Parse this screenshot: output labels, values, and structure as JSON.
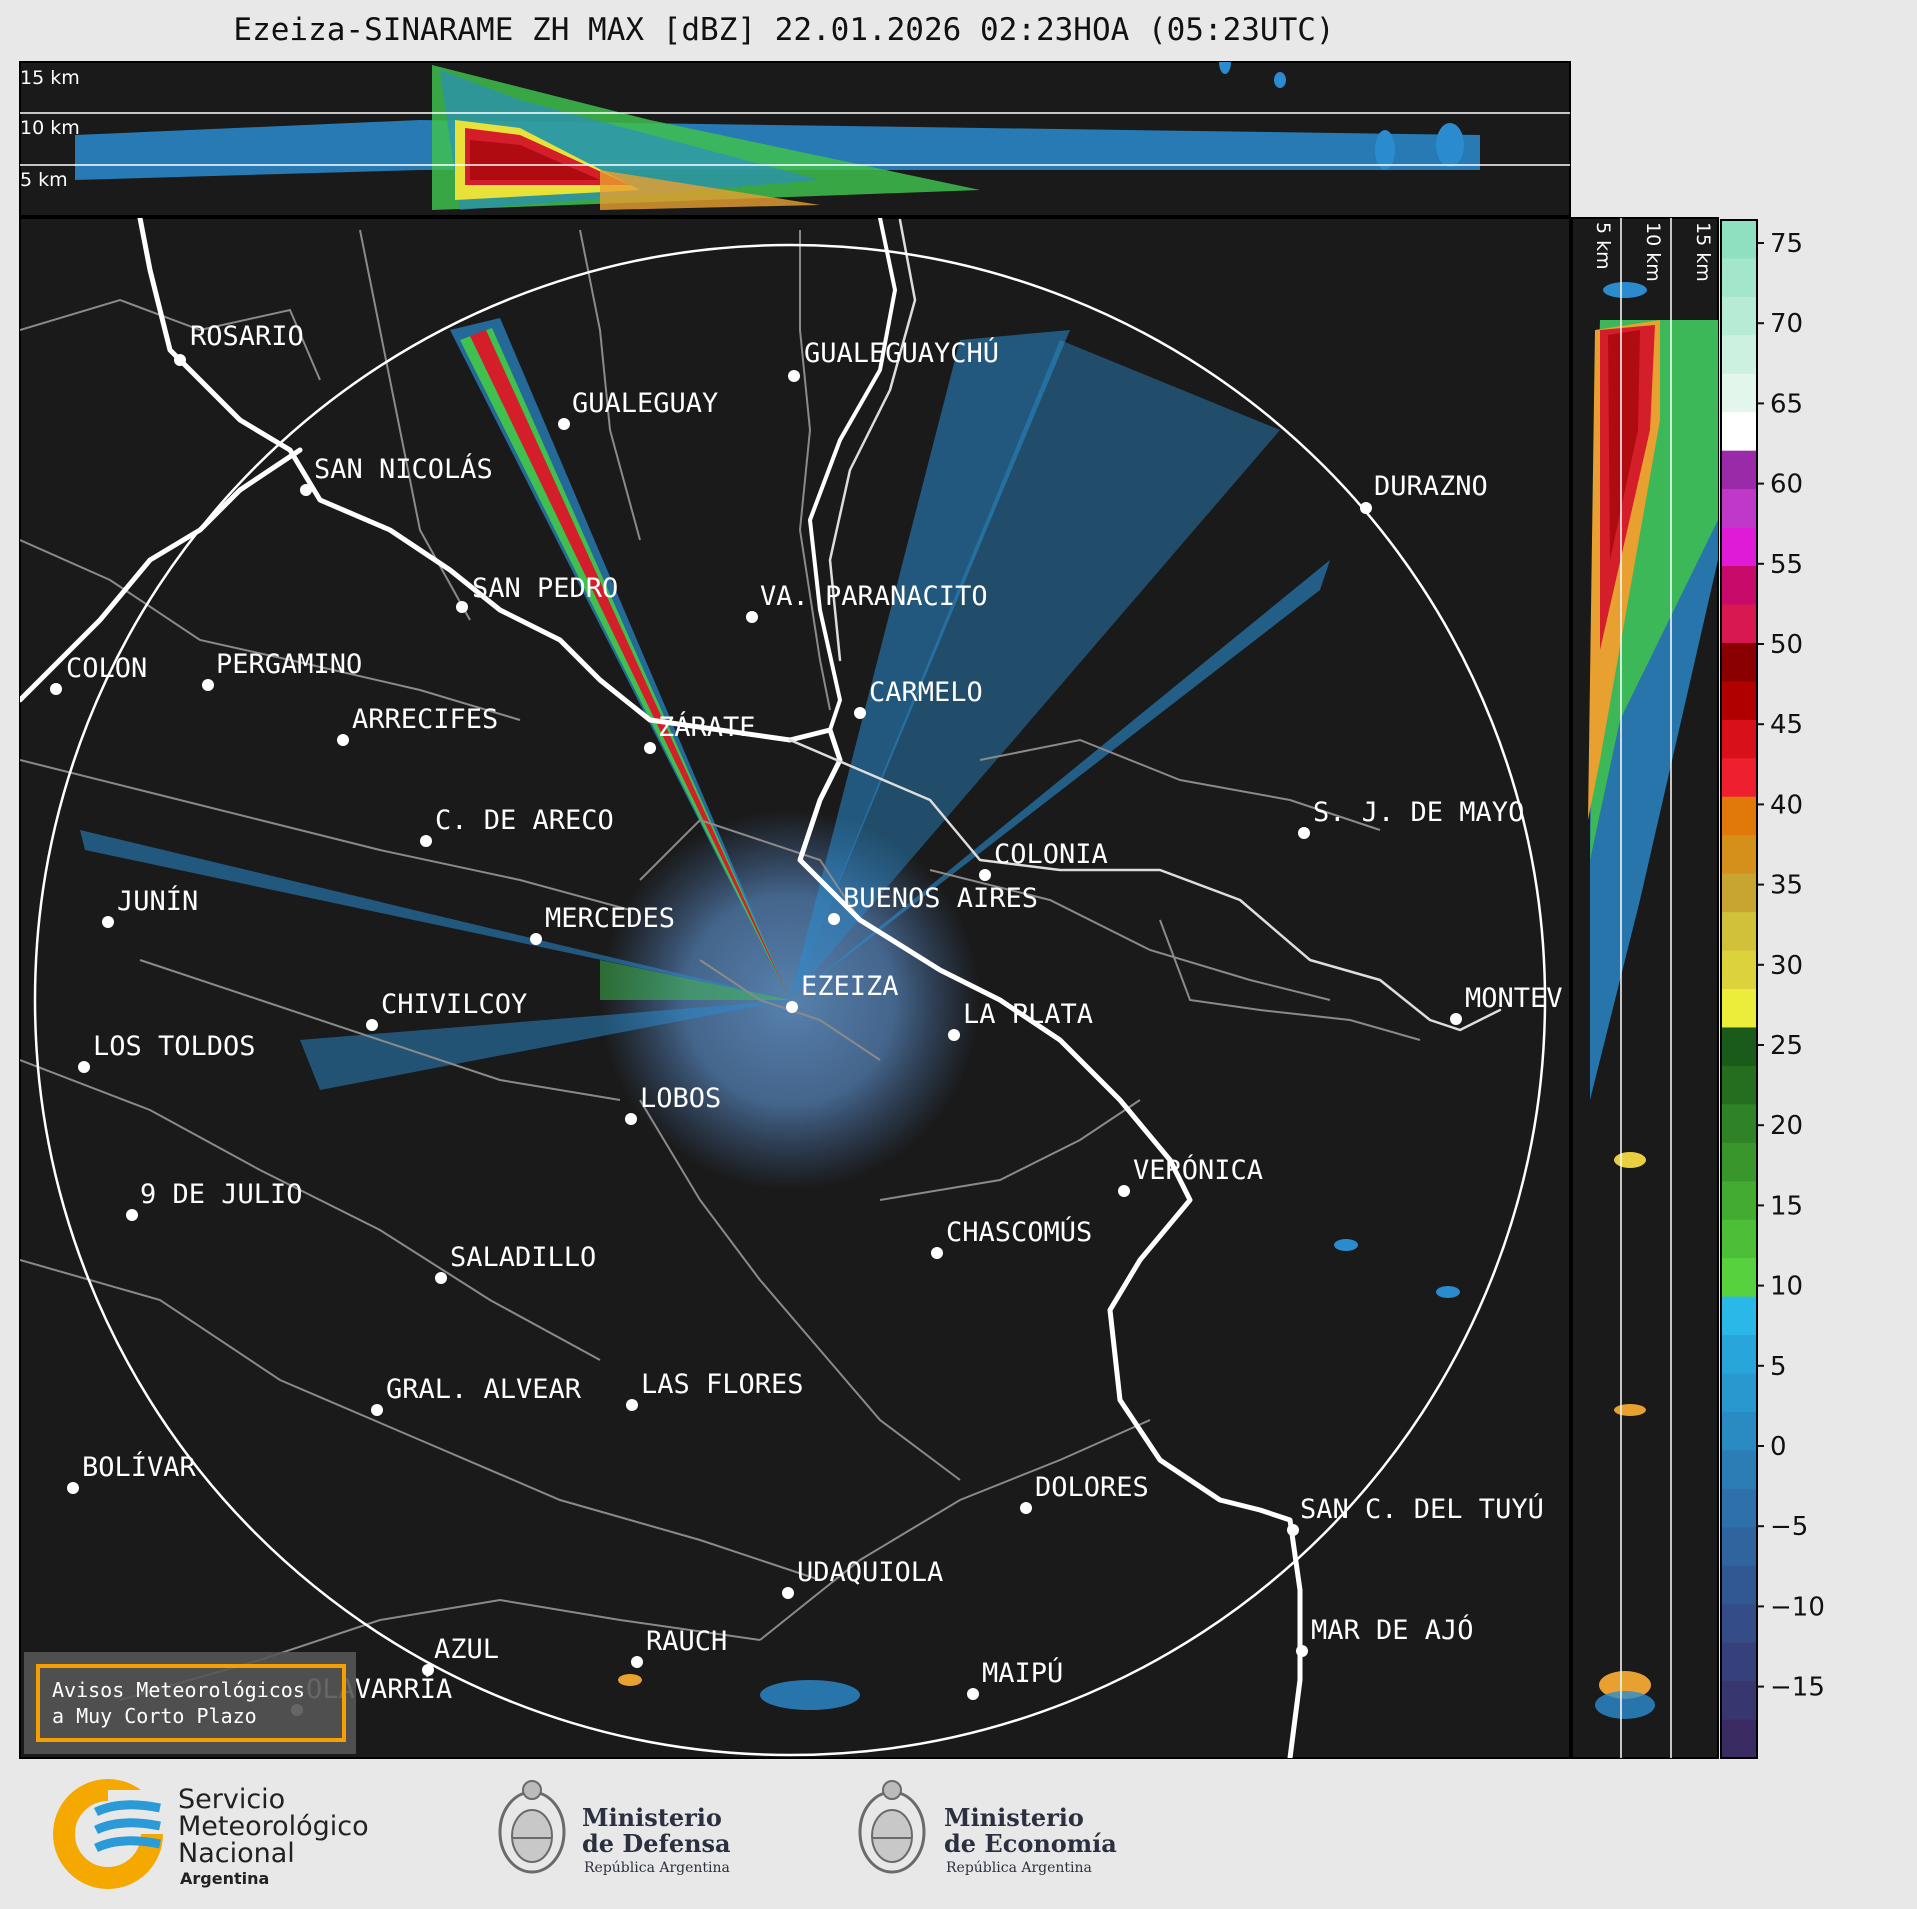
{
  "title": "Ezeiza-SINARAME ZH MAX [dBZ] 22.01.2026 02:23HOA (05:23UTC)",
  "top_panel": {
    "height_labels": [
      "15 km",
      "10 km",
      "5 km"
    ]
  },
  "side_panel": {
    "height_labels": [
      "5 km",
      "10 km",
      "15 km"
    ]
  },
  "colorbar": {
    "unit": "dBZ",
    "ticks": [
      "75",
      "70",
      "65",
      "60",
      "55",
      "50",
      "45",
      "40",
      "35",
      "30",
      "25",
      "20",
      "15",
      "10",
      "5",
      "0",
      "−5",
      "−10",
      "−15"
    ]
  },
  "cities": [
    {
      "name": "ROSARIO"
    },
    {
      "name": "GUALEGUAYCHÚ"
    },
    {
      "name": "GUALEGUAY"
    },
    {
      "name": "SAN NICOLÁS"
    },
    {
      "name": "DURAZNO"
    },
    {
      "name": "SAN PEDRO"
    },
    {
      "name": "VA. PARANACITO"
    },
    {
      "name": "COLON"
    },
    {
      "name": "PERGAMINO"
    },
    {
      "name": "CARMELO"
    },
    {
      "name": "ARRECIFES"
    },
    {
      "name": "ZÁRATE"
    },
    {
      "name": "S. J. DE MAYO"
    },
    {
      "name": "C. DE ARECO"
    },
    {
      "name": "COLONIA"
    },
    {
      "name": "JUNÍN"
    },
    {
      "name": "MERCEDES"
    },
    {
      "name": "BUENOS AIRES"
    },
    {
      "name": "EZEIZA"
    },
    {
      "name": "MONTEV"
    },
    {
      "name": "CHIVILCOY"
    },
    {
      "name": "LA PLATA"
    },
    {
      "name": "LOS TOLDOS"
    },
    {
      "name": "LOBOS"
    },
    {
      "name": "VERÓNICA"
    },
    {
      "name": "9 DE JULIO"
    },
    {
      "name": "CHASCOMÚS"
    },
    {
      "name": "SALADILLO"
    },
    {
      "name": "GRAL. ALVEAR"
    },
    {
      "name": "LAS FLORES"
    },
    {
      "name": "BOLÍVAR"
    },
    {
      "name": "DOLORES"
    },
    {
      "name": "SAN C. DEL TUYÚ"
    },
    {
      "name": "UDAQUIOLA"
    },
    {
      "name": "MAR DE AJÓ"
    },
    {
      "name": "AZUL"
    },
    {
      "name": "RAUCH"
    },
    {
      "name": "MAIPÚ"
    },
    {
      "name": "OLAVARRÍA"
    }
  ],
  "alert_box": {
    "line1": "Avisos Meteorológicos",
    "line2": "a Muy Corto Plazo"
  },
  "logos": {
    "smn": {
      "line1": "Servicio",
      "line2": "Meteorológico",
      "line3": "Nacional",
      "line4": "Argentina"
    },
    "defensa": {
      "line1": "Ministerio",
      "line2": "de Defensa",
      "line3": "República Argentina"
    },
    "economia": {
      "line1": "Ministerio",
      "line2": "de Economía",
      "line3": "República Argentina"
    }
  },
  "colors": {
    "panel_bg": "#1a1a1a",
    "coast": "#ffffff",
    "borders": "#8a8a8a",
    "ring": "#ffffff",
    "smn_orange": "#f5a800",
    "smn_blue": "#2b9bd8",
    "alert_border": "#f5a000"
  }
}
